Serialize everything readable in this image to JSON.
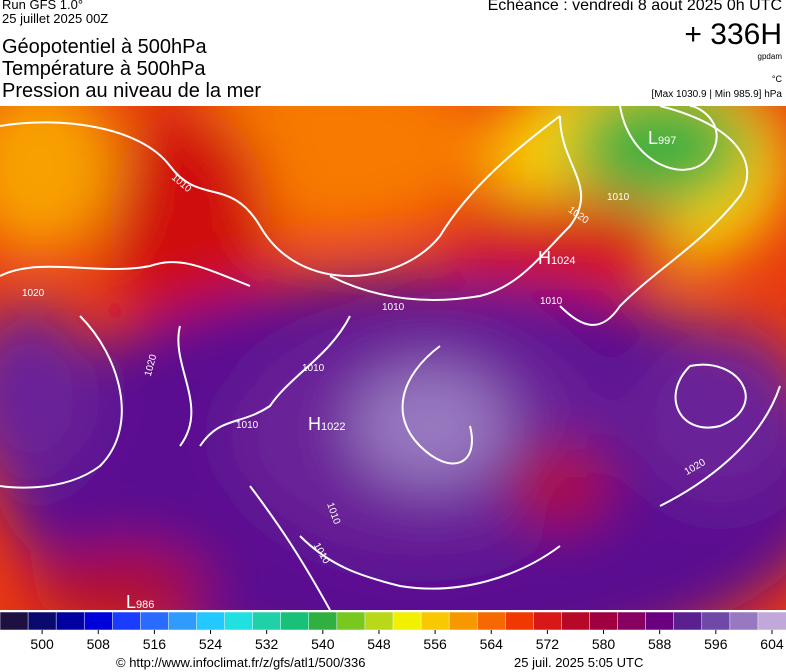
{
  "header": {
    "run": "Run GFS 1.0°",
    "date": "25 juillet 2025 00Z",
    "titles": [
      "Géopotentiel à 500hPa",
      "Température à 500hPa",
      "Pression au niveau de la mer"
    ],
    "echeance": "Echéance : vendredi 8 aout 2025 0h UTC",
    "lead": "+ 336H",
    "unit": "gpdam",
    "temp_unit": "°C",
    "pressure_range": "[Max 1030.9 | Min 985.9] hPa"
  },
  "map": {
    "isobar_labels": [
      "1010",
      "1020",
      "1010",
      "1020",
      "1010",
      "1020",
      "1010",
      "1010",
      "1010",
      "1020",
      "1010",
      "1010"
    ],
    "centers": [
      {
        "letter": "L",
        "value": "997"
      },
      {
        "letter": "H",
        "value": "1024"
      },
      {
        "letter": "H",
        "value": "1022"
      },
      {
        "letter": "L",
        "value": "986"
      }
    ]
  },
  "colorbar": {
    "range": [
      494,
      606
    ],
    "ticks": [
      500,
      508,
      516,
      524,
      532,
      540,
      548,
      556,
      564,
      572,
      580,
      588,
      596,
      604
    ],
    "colors": [
      "#1e1040",
      "#0a0a6e",
      "#0000a0",
      "#0000d8",
      "#1a3cff",
      "#2a6bff",
      "#2f9bff",
      "#22c8ff",
      "#20e0e0",
      "#20d0a8",
      "#18c078",
      "#30b040",
      "#78c820",
      "#b8d818",
      "#f0f000",
      "#f8c800",
      "#f89800",
      "#f86800",
      "#f03800",
      "#d81818",
      "#b80828",
      "#a00040",
      "#880060",
      "#6a0080",
      "#5a2090",
      "#7048a8",
      "#9878c0",
      "#c0a8d8"
    ]
  },
  "footer": {
    "source": "© http://www.infoclimat.fr/z/gfs/atl1/500/336",
    "generated": "25 juil. 2025  5:05 UTC"
  }
}
